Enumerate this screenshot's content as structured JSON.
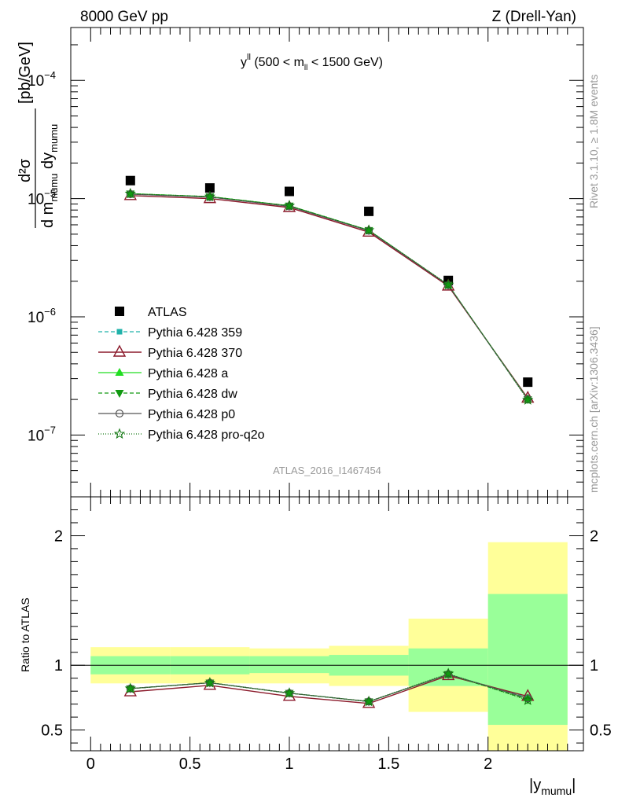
{
  "header": {
    "left": "8000 GeV pp",
    "right": "Z (Drell-Yan)",
    "subtitle_main": "y",
    "subtitle_sup": "ll",
    "subtitle_rest_a": " (500 < m",
    "subtitle_sub": "ll",
    "subtitle_rest_b": " < 1500 GeV)"
  },
  "side_labels": {
    "rivet": "Rivet 3.1.10, ≥ 1.8M events",
    "mcplots": "mcplots.cern.ch [arXiv:1306.3436]"
  },
  "watermark": "ATLAS_2016_I1467454",
  "ylabel_main": {
    "unit": "[pb/GeV]",
    "num": "d²σ",
    "den_a": "d m",
    "den_a_sub": "mumu",
    "den_b": " dy",
    "den_b_sub": "mumu"
  },
  "ylabel_ratio": "Ratio to ATLAS",
  "xlabel": {
    "main": "|y",
    "sub": "mumu",
    "end": "|"
  },
  "colors": {
    "data": "#000000",
    "p359": "#20b2aa",
    "p370": "#8b1a2b",
    "pa": "#22dd22",
    "pdw": "#119911",
    "pp0": "#555555",
    "pq2o": "#117711",
    "band_inner": "#99ff99",
    "band_outer": "#ffff99"
  },
  "chart_data": [
    {
      "type": "scatter",
      "panel": "main",
      "x_scale": "linear",
      "y_scale": "log",
      "xlim": [
        -0.1,
        2.48
      ],
      "ylim": [
        3e-08,
        0.00028
      ],
      "y_ticks": [
        "10⁻⁷",
        "10⁻⁶",
        "10⁻⁵",
        "10⁻⁴"
      ],
      "x": [
        0.2,
        0.6,
        1.0,
        1.4,
        1.8,
        2.2
      ],
      "series": [
        {
          "name": "ATLAS",
          "key": "data",
          "values": [
            1.42e-05,
            1.23e-05,
            1.15e-05,
            7.8e-06,
            2.03e-06,
            2.8e-07
          ]
        },
        {
          "name": "Pythia 6.428 359",
          "key": "p359",
          "values": [
            1.09e-05,
            1.03e-05,
            8.6e-06,
            5.35e-06,
            1.85e-06,
            2e-07
          ]
        },
        {
          "name": "Pythia 6.428 370",
          "key": "p370",
          "values": [
            1.06e-05,
            1e-05,
            8.4e-06,
            5.2e-06,
            1.82e-06,
            2.05e-07
          ]
        },
        {
          "name": "Pythia 6.428 a",
          "key": "pa",
          "values": [
            1.1e-05,
            1.04e-05,
            8.7e-06,
            5.4e-06,
            1.86e-06,
            2.02e-07
          ]
        },
        {
          "name": "Pythia 6.428 dw",
          "key": "pdw",
          "values": [
            1.1e-05,
            1.04e-05,
            8.7e-06,
            5.4e-06,
            1.86e-06,
            2e-07
          ]
        },
        {
          "name": "Pythia 6.428 p0",
          "key": "pp0",
          "values": [
            1.09e-05,
            1.03e-05,
            8.6e-06,
            5.35e-06,
            1.85e-06,
            2.01e-07
          ]
        },
        {
          "name": "Pythia 6.428 pro-q2o",
          "key": "pq2o",
          "values": [
            1.1e-05,
            1.04e-05,
            8.7e-06,
            5.4e-06,
            1.87e-06,
            1.98e-07
          ]
        }
      ]
    },
    {
      "type": "line",
      "panel": "ratio",
      "y_scale": "linear",
      "xlim": [
        -0.1,
        2.48
      ],
      "ylim": [
        0.34,
        2.3
      ],
      "x_ticks": [
        "0",
        "0.5",
        "1",
        "1.5",
        "2"
      ],
      "y_ticks": [
        "0.5",
        "1",
        "2"
      ],
      "x": [
        0.2,
        0.6,
        1.0,
        1.4,
        1.8,
        2.2
      ],
      "bins": [
        [
          0.0,
          0.4
        ],
        [
          0.4,
          0.8
        ],
        [
          0.8,
          1.2
        ],
        [
          1.2,
          1.6
        ],
        [
          1.6,
          2.0
        ],
        [
          2.0,
          2.4
        ]
      ],
      "band_inner": [
        [
          0.93,
          1.07
        ],
        [
          0.93,
          1.07
        ],
        [
          0.94,
          1.07
        ],
        [
          0.92,
          1.08
        ],
        [
          0.84,
          1.13
        ],
        [
          0.54,
          1.55
        ]
      ],
      "band_outer": [
        [
          0.86,
          1.14
        ],
        [
          0.86,
          1.14
        ],
        [
          0.86,
          1.13
        ],
        [
          0.84,
          1.15
        ],
        [
          0.64,
          1.36
        ],
        [
          0.34,
          1.95
        ]
      ],
      "series": [
        {
          "name": "Pythia 6.428 359",
          "key": "p359",
          "values": [
            0.82,
            0.865,
            0.785,
            0.72,
            0.93,
            0.75
          ]
        },
        {
          "name": "Pythia 6.428 370",
          "key": "p370",
          "values": [
            0.795,
            0.845,
            0.76,
            0.705,
            0.92,
            0.76
          ]
        },
        {
          "name": "Pythia 6.428 a",
          "key": "pa",
          "values": [
            0.82,
            0.865,
            0.785,
            0.72,
            0.93,
            0.745
          ]
        },
        {
          "name": "Pythia 6.428 dw",
          "key": "pdw",
          "values": [
            0.82,
            0.865,
            0.785,
            0.72,
            0.93,
            0.735
          ]
        },
        {
          "name": "Pythia 6.428 p0",
          "key": "pp0",
          "values": [
            0.82,
            0.865,
            0.785,
            0.72,
            0.93,
            0.745
          ]
        },
        {
          "name": "Pythia 6.428 pro-q2o",
          "key": "pq2o",
          "values": [
            0.82,
            0.865,
            0.785,
            0.72,
            0.935,
            0.73
          ]
        }
      ]
    }
  ]
}
